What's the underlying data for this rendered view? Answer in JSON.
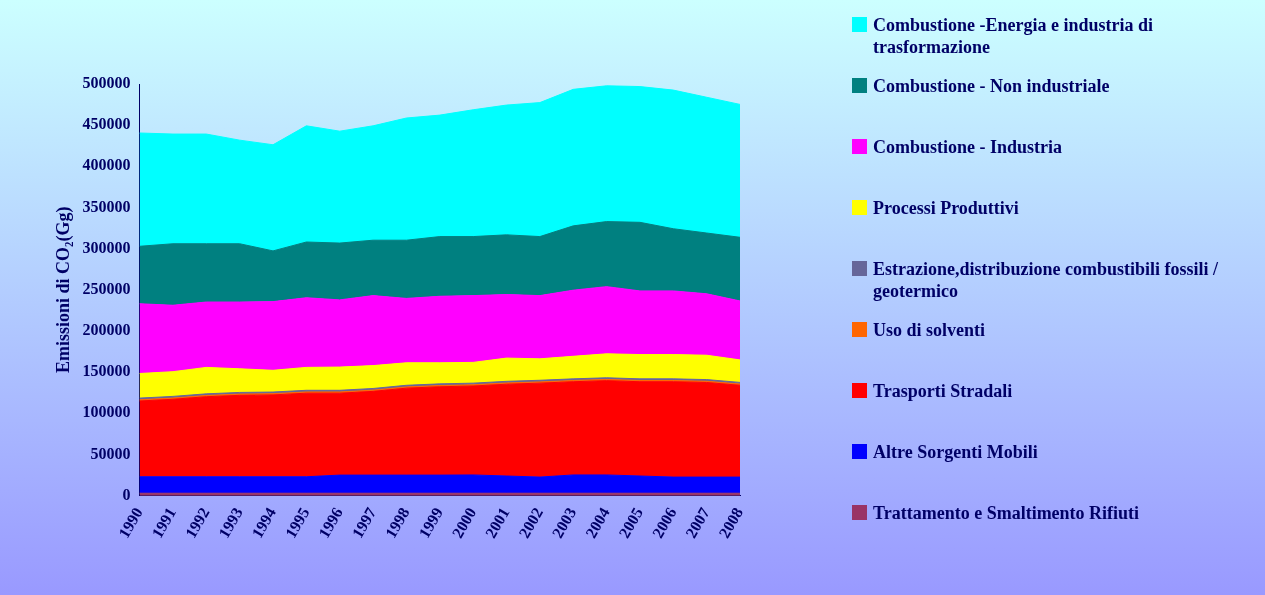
{
  "chart_data": {
    "type": "area",
    "stacked": true,
    "ylabel": "Emissioni di CO₂(Gg)",
    "categories": [
      "1990",
      "1991",
      "1992",
      "1993",
      "1994",
      "1995",
      "1996",
      "1997",
      "1998",
      "1999",
      "2000",
      "2001",
      "2002",
      "2003",
      "2004",
      "2005",
      "2006",
      "2007",
      "2008"
    ],
    "ylim": [
      0,
      500000
    ],
    "yticks": [
      0,
      50000,
      100000,
      150000,
      200000,
      250000,
      300000,
      350000,
      400000,
      450000,
      500000
    ],
    "grid": false,
    "legend": "right",
    "marker": "none",
    "series": [
      {
        "name": "Trattamento e Smaltimento Rifiuti",
        "color": "#993366",
        "values": [
          3000,
          3000,
          3000,
          3000,
          3000,
          3000,
          3000,
          3000,
          3000,
          3000,
          3000,
          3000,
          3000,
          3000,
          3000,
          3000,
          3000,
          3000,
          3000
        ]
      },
      {
        "name": "Altre Sorgenti Mobili",
        "color": "#0000ff",
        "values": [
          20000,
          20000,
          20000,
          20000,
          20000,
          20000,
          22000,
          22000,
          22000,
          22000,
          22200,
          20900,
          19600,
          22200,
          22200,
          20900,
          19600,
          19600,
          19600
        ]
      },
      {
        "name": "Trasporti Stradali",
        "color": "#ff0000",
        "values": [
          92000,
          94100,
          97200,
          98900,
          99400,
          101500,
          99500,
          101700,
          105600,
          107300,
          108000,
          111500,
          114100,
          113200,
          114500,
          114500,
          115800,
          114900,
          111500
        ]
      },
      {
        "name": "Uso di solventi",
        "color": "#ff6600",
        "values": [
          1500,
          1500,
          1500,
          1500,
          1500,
          1500,
          1500,
          1500,
          1500,
          1500,
          1500,
          1500,
          1500,
          1500,
          1500,
          1500,
          1500,
          1500,
          1500
        ]
      },
      {
        "name": "Estrazione,distribuzione combustibili fossili / geotermico",
        "color": "#666699",
        "values": [
          2000,
          2000,
          2000,
          2000,
          2000,
          2000,
          2000,
          2000,
          2000,
          2000,
          2000,
          2000,
          2000,
          2000,
          2000,
          2000,
          2000,
          2000,
          2000
        ]
      },
      {
        "name": "Processi Produttivi",
        "color": "#ffff00",
        "values": [
          29900,
          30000,
          32100,
          28700,
          26400,
          27800,
          28200,
          27800,
          27300,
          25600,
          25200,
          28200,
          26000,
          27400,
          29100,
          29500,
          29500,
          29600,
          27300
        ]
      },
      {
        "name": "Combustione - Industria",
        "color": "#ff00ff",
        "values": [
          84700,
          80700,
          79400,
          81100,
          83400,
          84600,
          81600,
          85000,
          78200,
          80800,
          81100,
          77200,
          76800,
          80300,
          81600,
          77300,
          77300,
          74600,
          71600
        ]
      },
      {
        "name": "Combustione - Non industriale",
        "color": "#008080",
        "values": [
          69800,
          74700,
          70800,
          70800,
          61600,
          67700,
          69000,
          67300,
          70700,
          72500,
          71700,
          72500,
          71700,
          78100,
          79000,
          83300,
          75500,
          73800,
          77300
        ]
      },
      {
        "name": "Combustione -Energia e industria di trasformazione",
        "color": "#00ffff",
        "values": [
          137600,
          133200,
          133200,
          125800,
          128900,
          141100,
          135900,
          138900,
          148400,
          147500,
          154000,
          157600,
          162700,
          165800,
          164900,
          164900,
          168400,
          164900,
          161400
        ]
      }
    ]
  }
}
